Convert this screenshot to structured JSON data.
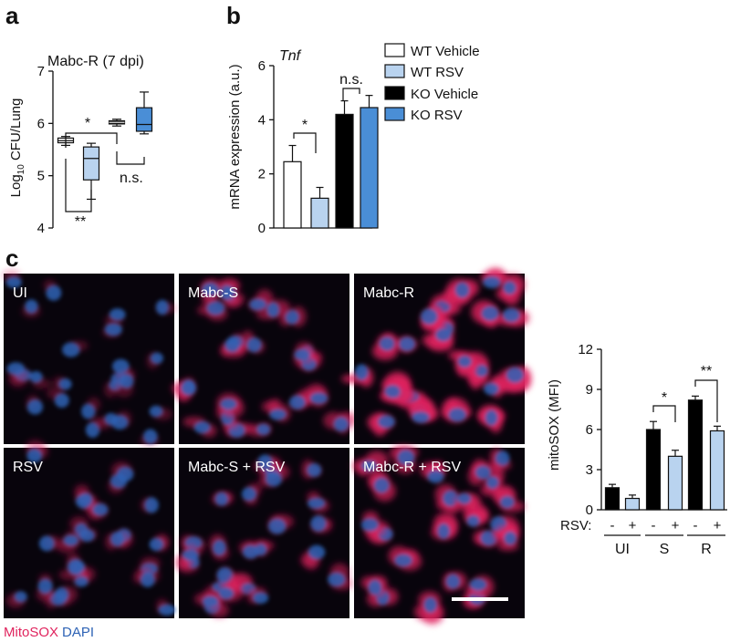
{
  "panels": {
    "a": "a",
    "b": "b",
    "c": "c"
  },
  "colors": {
    "wt_vehicle": "#ffffff",
    "wt_rsv": "#b9d3ef",
    "ko_vehicle": "#000000",
    "ko_rsv": "#4a8ed6",
    "mitosox": "#e0245e",
    "dapi": "#2e63b5"
  },
  "chart_data": [
    {
      "id": "a",
      "type": "box",
      "title": "Mabc-R (7 dpi)",
      "ylabel": "Log₁₀ CFU/Lung",
      "ylabel_main": "Log",
      "ylabel_sub": "10",
      "ylabel_rest": " CFU/Lung",
      "ylim": [
        4,
        7
      ],
      "yticks": [
        "4",
        "5",
        "6",
        "7"
      ],
      "series": [
        {
          "group": "WT Vehicle",
          "color": "#ffffff",
          "min": 5.58,
          "q1": 5.63,
          "median": 5.67,
          "q3": 5.72,
          "max": 5.75
        },
        {
          "group": "WT RSV",
          "color": "#b9d3ef",
          "min": 4.55,
          "q1": 4.92,
          "median": 5.33,
          "q3": 5.55,
          "max": 5.62
        },
        {
          "group": "KO Vehicle",
          "color": "#000000",
          "min": 5.95,
          "q1": 5.99,
          "median": 6.02,
          "q3": 6.05,
          "max": 6.08
        },
        {
          "group": "KO RSV",
          "color": "#4a8ed6",
          "min": 5.8,
          "q1": 5.85,
          "median": 5.98,
          "q3": 6.3,
          "max": 6.6
        }
      ],
      "annotations": [
        "*",
        "**",
        "n.s."
      ]
    },
    {
      "id": "b",
      "type": "bar",
      "title": "Tnf",
      "ylabel": "mRNA expression (a.u.)",
      "ylim": [
        0,
        6
      ],
      "yticks": [
        "0",
        "2",
        "4",
        "6"
      ],
      "categories": [
        "WT Vehicle",
        "WT RSV",
        "KO Vehicle",
        "KO RSV"
      ],
      "values": [
        2.45,
        1.1,
        4.2,
        4.45
      ],
      "errors": [
        0.6,
        0.4,
        0.5,
        0.45
      ],
      "colors": [
        "#ffffff",
        "#b9d3ef",
        "#000000",
        "#4a8ed6"
      ],
      "annotations": [
        "*",
        "n.s."
      ]
    },
    {
      "id": "c",
      "type": "bar",
      "ylabel": "mitoSOX (MFI)",
      "ylim": [
        0,
        12
      ],
      "yticks": [
        "0",
        "3",
        "6",
        "9",
        "12"
      ],
      "rsv_label": "RSV:",
      "rsv_signs": [
        "-",
        "+",
        "-",
        "+",
        "-",
        "+"
      ],
      "groups": [
        "UI",
        "S",
        "R"
      ],
      "values": [
        1.65,
        0.85,
        6.0,
        4.0,
        8.2,
        5.9
      ],
      "errors": [
        0.25,
        0.25,
        0.6,
        0.45,
        0.3,
        0.35
      ],
      "colors": [
        "#000000",
        "#b9d3ef",
        "#000000",
        "#b9d3ef",
        "#000000",
        "#b9d3ef"
      ],
      "annotations": [
        "*",
        "**"
      ]
    }
  ],
  "legend": [
    "WT Vehicle",
    "WT RSV",
    "KO Vehicle",
    "KO RSV"
  ],
  "micrographs": {
    "labels": [
      "UI",
      "Mabc-S",
      "Mabc-R",
      "RSV",
      "Mabc-S + RSV",
      "Mabc-R + RSV"
    ],
    "red_intensity": [
      0.15,
      0.55,
      0.95,
      0.3,
      0.5,
      0.75
    ]
  },
  "stain_caption": {
    "mitosox": "MitoSOX",
    "dapi": "DAPI"
  }
}
